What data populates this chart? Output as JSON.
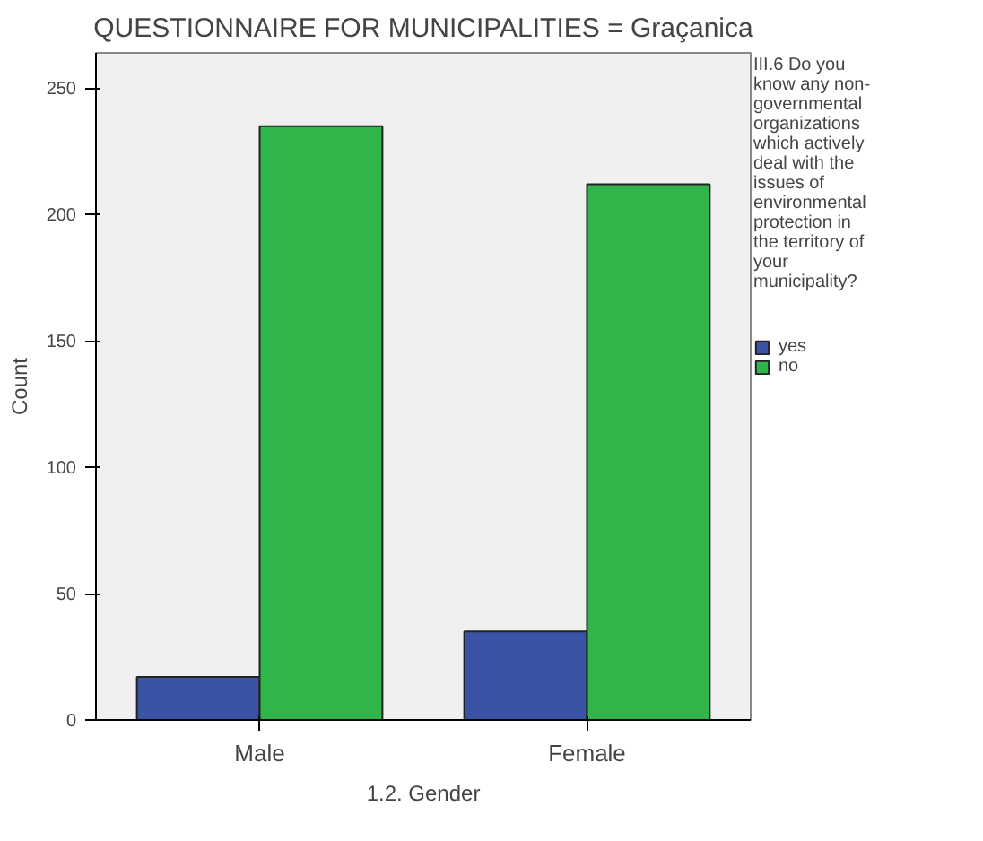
{
  "chart_data": {
    "type": "bar",
    "title": "QUESTIONNAIRE FOR MUNICIPALITIES = Graçanica",
    "xlabel": "1.2. Gender",
    "ylabel": "Count",
    "legend_title": "III.6 Do you know any non-governmental organizations which actively deal with the issues of environmental protection in the territory of your municipality?",
    "categories": [
      "Male",
      "Female"
    ],
    "series": [
      {
        "name": "yes",
        "color": "#3a53a4",
        "values": [
          17,
          35
        ]
      },
      {
        "name": "no",
        "color": "#2fb54a",
        "values": [
          235,
          212
        ]
      }
    ],
    "ylim": [
      0,
      264
    ],
    "yticks": [
      0,
      50,
      100,
      150,
      200,
      250
    ],
    "grid": false,
    "legend": "right"
  }
}
